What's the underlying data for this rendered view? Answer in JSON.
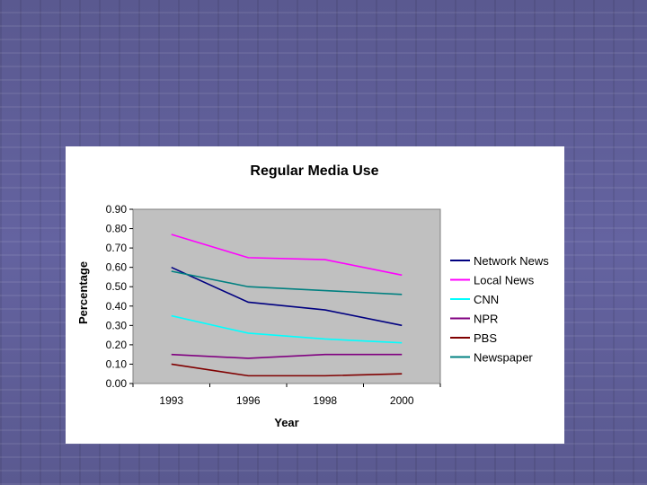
{
  "chart_data": {
    "type": "line",
    "title": "Regular Media Use",
    "xlabel": "Year",
    "ylabel": "Percentage",
    "categories": [
      "1993",
      "1996",
      "1998",
      "2000"
    ],
    "ylim": [
      0,
      0.9
    ],
    "yticks": [
      "0.00",
      "0.10",
      "0.20",
      "0.30",
      "0.40",
      "0.50",
      "0.60",
      "0.70",
      "0.80",
      "0.90"
    ],
    "legend_position": "right",
    "series": [
      {
        "name": "Network News",
        "color": "#000080",
        "values": [
          0.6,
          0.42,
          0.38,
          0.3
        ]
      },
      {
        "name": "Local News",
        "color": "#ff00ff",
        "values": [
          0.77,
          0.65,
          0.64,
          0.56
        ]
      },
      {
        "name": "CNN",
        "color": "#00ffff",
        "values": [
          0.35,
          0.26,
          0.23,
          0.21
        ]
      },
      {
        "name": "NPR",
        "color": "#800080",
        "values": [
          0.15,
          0.13,
          0.15,
          0.15
        ]
      },
      {
        "name": "PBS",
        "color": "#800000",
        "values": [
          0.1,
          0.04,
          0.04,
          0.05
        ]
      },
      {
        "name": "Newspaper",
        "color": "#008080",
        "values": [
          0.58,
          0.5,
          0.48,
          0.46
        ]
      }
    ]
  }
}
